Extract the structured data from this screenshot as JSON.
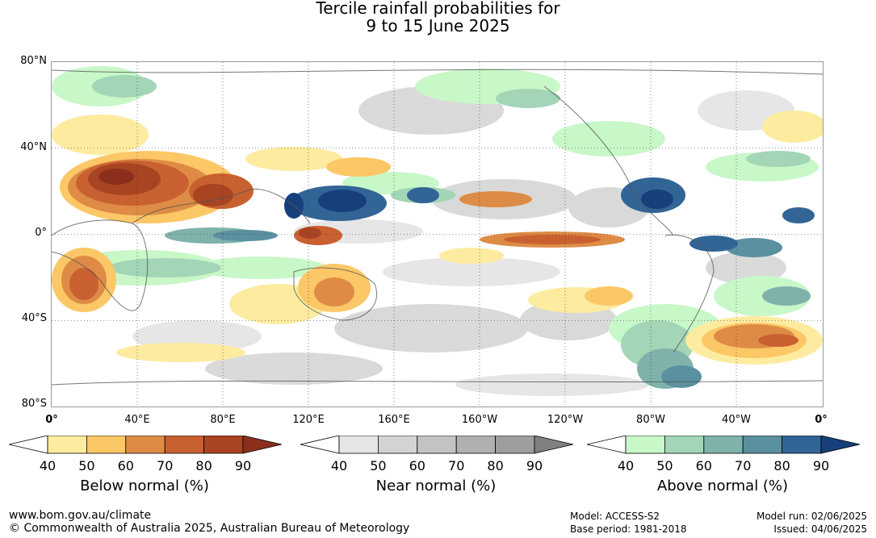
{
  "title": {
    "line1": "Tercile rainfall probabilities for",
    "line2": "9 to 15 June 2025"
  },
  "axes": {
    "lat_labels": [
      "80°N",
      "40°N",
      "0°",
      "40°S",
      "80°S"
    ],
    "lon_labels": [
      "0°",
      "40°E",
      "80°E",
      "120°E",
      "160°E",
      "160°W",
      "120°W",
      "80°W",
      "40°W",
      "0°"
    ]
  },
  "colorbars": [
    {
      "label": "Below normal (%)",
      "ticks": [
        "40",
        "50",
        "60",
        "70",
        "80",
        "90"
      ],
      "colors": [
        "#ffffff",
        "#fdeba0",
        "#fcc766",
        "#de8c45",
        "#c96030",
        "#a94422",
        "#8b2f1c"
      ]
    },
    {
      "label": "Near normal (%)",
      "ticks": [
        "40",
        "50",
        "60",
        "70",
        "80",
        "90"
      ],
      "colors": [
        "#ffffff",
        "#e6e6e6",
        "#d3d3d3",
        "#c3c3c3",
        "#b0b0b0",
        "#9e9e9e",
        "#808080"
      ]
    },
    {
      "label": "Above normal (%)",
      "ticks": [
        "40",
        "50",
        "60",
        "70",
        "80",
        "90"
      ],
      "colors": [
        "#ffffff",
        "#c8f7c8",
        "#a3d5b7",
        "#7fb2ab",
        "#5a90a0",
        "#326596",
        "#163f7c"
      ]
    }
  ],
  "footer": {
    "website": "www.bom.gov.au/climate",
    "copyright": "© Commonwealth of Australia 2025, Australian Bureau of Meteorology",
    "model": "Model: ACCESS-S2",
    "base_period": "Base period: 1981-2018",
    "model_run": "Model run: 02/06/2025",
    "issued": "Issued: 04/06/2025"
  }
}
